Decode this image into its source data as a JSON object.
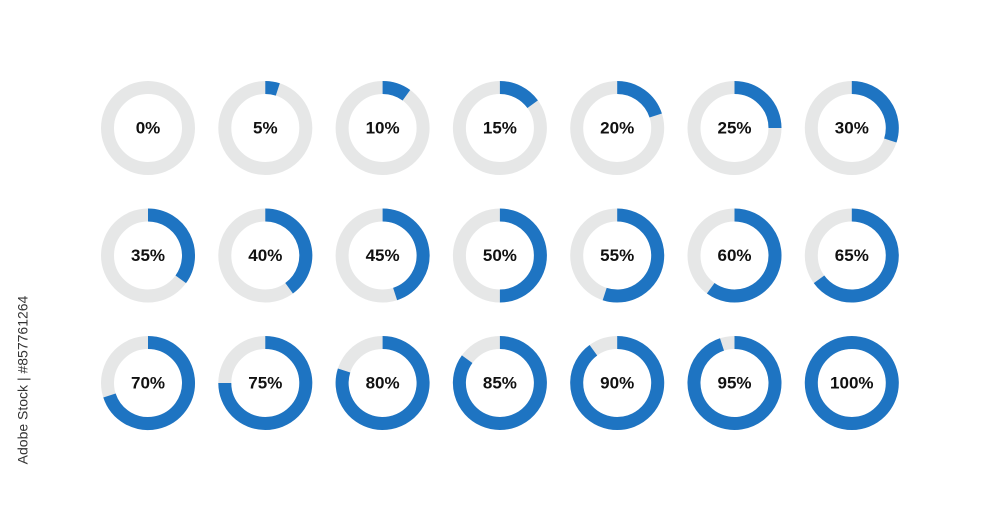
{
  "chart_data": {
    "type": "progress-ring",
    "values": [
      0,
      5,
      10,
      15,
      20,
      25,
      30,
      35,
      40,
      45,
      50,
      55,
      60,
      65,
      70,
      75,
      80,
      85,
      90,
      95,
      100
    ],
    "value_labels": [
      "0%",
      "5%",
      "10%",
      "15%",
      "20%",
      "25%",
      "30%",
      "35%",
      "40%",
      "45%",
      "50%",
      "55%",
      "60%",
      "65%",
      "70%",
      "75%",
      "80%",
      "85%",
      "90%",
      "95%",
      "100%"
    ],
    "max": 100,
    "color": "#1e74c2",
    "track_color": "#e6e7e7",
    "columns": 7
  },
  "watermark": "Adobe Stock | #857761264"
}
